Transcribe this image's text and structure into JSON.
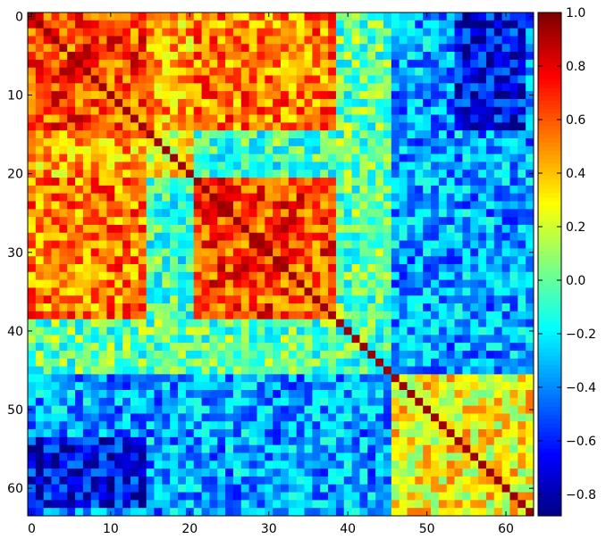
{
  "chart_data": {
    "type": "heatmap",
    "title": "",
    "xlabel": "",
    "ylabel": "",
    "matrix_size": 64,
    "x_range": [
      0,
      64
    ],
    "y_range": [
      0,
      64
    ],
    "x_ticks": [
      0,
      10,
      20,
      30,
      40,
      50,
      60
    ],
    "y_ticks": [
      0,
      10,
      20,
      30,
      40,
      50,
      60
    ],
    "x_tick_labels": [
      "0",
      "10",
      "20",
      "30",
      "40",
      "50",
      "60"
    ],
    "y_tick_labels": [
      "0",
      "10",
      "20",
      "30",
      "40",
      "50",
      "60"
    ],
    "colorbar": {
      "min": -0.88,
      "max": 1.0,
      "ticks": [
        1.0,
        0.8,
        0.6,
        0.4,
        0.2,
        0.0,
        -0.2,
        -0.4,
        -0.6,
        -0.8
      ],
      "tick_labels": [
        "1.0",
        "0.8",
        "0.6",
        "0.4",
        "0.2",
        "0.0",
        "−0.2",
        "−0.4",
        "−0.6",
        "−0.8"
      ],
      "colormap": "jet"
    },
    "diagonal_value": 1.0,
    "blocks": [
      {
        "rows": [
          0,
          14
        ],
        "cols": [
          0,
          14
        ],
        "mean": 0.65
      },
      {
        "rows": [
          0,
          14
        ],
        "cols": [
          15,
          38
        ],
        "mean": 0.45
      },
      {
        "rows": [
          15,
          20
        ],
        "cols": [
          15,
          20
        ],
        "mean": 0.3
      },
      {
        "rows": [
          21,
          38
        ],
        "cols": [
          21,
          38
        ],
        "mean": 0.65
      },
      {
        "rows": [
          21,
          38
        ],
        "cols": [
          0,
          14
        ],
        "mean": 0.55
      },
      {
        "rows": [
          0,
          38
        ],
        "cols": [
          39,
          45
        ],
        "mean": 0.0
      },
      {
        "rows": [
          0,
          45
        ],
        "cols": [
          46,
          63
        ],
        "mean": -0.25
      },
      {
        "rows": [
          46,
          63
        ],
        "cols": [
          46,
          63
        ],
        "mean": 0.3
      },
      {
        "rows": [
          46,
          63
        ],
        "cols": [
          0,
          45
        ],
        "mean": -0.35
      },
      {
        "rows": [
          54,
          62
        ],
        "cols": [
          0,
          14
        ],
        "mean": -0.65
      }
    ],
    "grid": false,
    "legend": "none"
  }
}
